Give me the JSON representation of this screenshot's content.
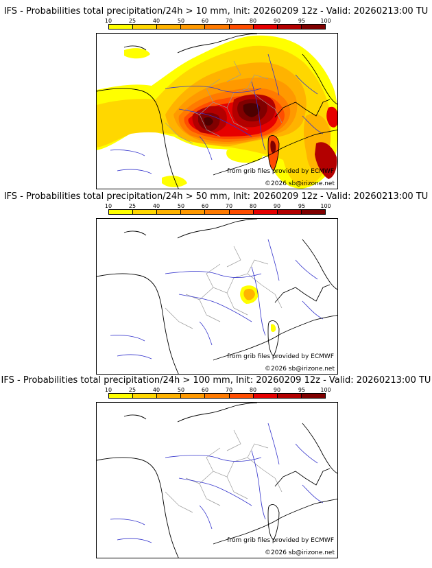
{
  "colorbar": {
    "ticks": [
      "10",
      "25",
      "40",
      "50",
      "60",
      "70",
      "80",
      "90",
      "95",
      "100"
    ],
    "colors": [
      "#ffff00",
      "#ffd700",
      "#ffb300",
      "#ff9900",
      "#ff7a00",
      "#ff4d00",
      "#e60000",
      "#b30000",
      "#800000",
      "#4d0000"
    ]
  },
  "credits": {
    "source": "from grib files provided by ECMWF",
    "copyright": "©2026 sb@irizone.net"
  },
  "panels": [
    {
      "title": "IFS - Probabilities total precipitation/24h > 10 mm, Init: 20260209 12z - Valid: 20260213:00 TU"
    },
    {
      "title": "IFS - Probabilities total precipitation/24h > 50 mm, Init: 20260209 12z - Valid: 20260213:00 TU"
    },
    {
      "title": "IFS - Probabilities total precipitation/24h > 100 mm, Init: 20260209 12z - Valid: 20260213:00 TU"
    }
  ],
  "legend_colors": {
    "coast": "#000000",
    "rivers": "#3333cc",
    "regions": "#999999"
  }
}
